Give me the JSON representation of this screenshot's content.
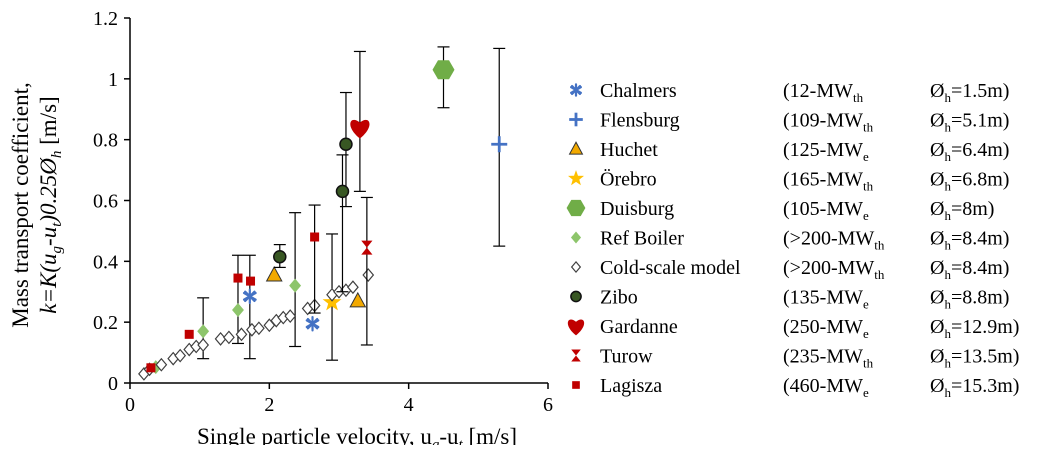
{
  "chart_data": {
    "type": "scatter",
    "xlabel": "Single particle velocity, u",
    "xlabel_sub": "g",
    "xlabel_mid": "-u",
    "xlabel_sub2": "t",
    "xlabel_unit": " [m/s]",
    "ylabel_line1": "Mass transport coefficient,",
    "ylabel_line2": "k=K(u",
    "ylabel_sub1": "g",
    "ylabel_mid": "-u",
    "ylabel_sub2": "t",
    "ylabel_rest": ")0.25Ø",
    "ylabel_sub3": "h",
    "ylabel_unit": " [m/s]",
    "xlim": [
      0,
      6
    ],
    "ylim": [
      0,
      1.2
    ],
    "x_ticks": [
      0,
      2,
      4,
      6
    ],
    "x_tick_labels": [
      "0",
      "2",
      "4",
      "6"
    ],
    "y_ticks": [
      0,
      0.2,
      0.4,
      0.6,
      0.8,
      1,
      1.2
    ],
    "y_tick_labels": [
      "0",
      "0.2",
      "0.4",
      "0.6",
      "0.8",
      "1",
      "1.2"
    ],
    "grid": false,
    "legend_placement": "right",
    "series": [
      {
        "name": "Chalmers",
        "detail": "(12-MW",
        "sub": "th",
        "diam": "Ø",
        "diam_sub": "h",
        "diam_val": "=1.5m)",
        "marker": "asterisk",
        "color": "#4472C4",
        "points": [
          {
            "x": 1.72,
            "y": 0.285,
            "lo": 0.08,
            "hi": 0.42
          },
          {
            "x": 2.62,
            "y": 0.195
          }
        ]
      },
      {
        "name": "Flensburg",
        "detail": "(109-MW",
        "sub": "th",
        "diam": "Ø",
        "diam_sub": "h",
        "diam_val": "=5.1m)",
        "marker": "plus",
        "color": "#4472C4",
        "points": [
          {
            "x": 5.3,
            "y": 0.785,
            "lo": 0.45,
            "hi": 1.1
          }
        ]
      },
      {
        "name": "Huchet",
        "detail": "(125-MW",
        "sub": "e",
        "diam": "Ø",
        "diam_sub": "h",
        "diam_val": "=6.4m)",
        "marker": "triangle",
        "color": "#F2A900",
        "points": [
          {
            "x": 2.07,
            "y": 0.355
          },
          {
            "x": 3.27,
            "y": 0.27
          }
        ]
      },
      {
        "name": "Örebro",
        "detail": "(165-MW",
        "sub": "th",
        "diam": "Ø",
        "diam_sub": "h",
        "diam_val": "=6.8m)",
        "marker": "star",
        "color": "#FFC000",
        "points": [
          {
            "x": 2.9,
            "y": 0.265,
            "lo": 0.075,
            "hi": 0.49
          }
        ]
      },
      {
        "name": "Duisburg",
        "detail": "(105-MW",
        "sub": "e",
        "diam": "Ø",
        "diam_sub": "h",
        "diam_val": "=8m)",
        "marker": "hexagon",
        "color": "#70AD47",
        "points": [
          {
            "x": 4.5,
            "y": 1.03,
            "lo": 0.905,
            "hi": 1.105
          }
        ]
      },
      {
        "name": "Ref Boiler",
        "detail": "(>200-MW",
        "sub": "th",
        "diam": "Ø",
        "diam_sub": "h",
        "diam_val": "=8.4m)",
        "marker": "diamond",
        "color": "#8DC56B",
        "points": [
          {
            "x": 0.37,
            "y": 0.052
          },
          {
            "x": 1.05,
            "y": 0.17,
            "lo": 0.08,
            "hi": 0.28
          },
          {
            "x": 1.55,
            "y": 0.24,
            "lo": 0.13,
            "hi": 0.42
          },
          {
            "x": 2.37,
            "y": 0.32,
            "lo": 0.12,
            "hi": 0.56
          }
        ]
      },
      {
        "name": "Cold-scale model",
        "detail": "(>200-MW",
        "sub": "th",
        "diam": "Ø",
        "diam_sub": "h",
        "diam_val": "=8.4m)",
        "marker": "open-diamond",
        "color": "#404040",
        "points": [
          {
            "x": 0.2,
            "y": 0.03
          },
          {
            "x": 0.28,
            "y": 0.045
          },
          {
            "x": 0.45,
            "y": 0.06
          },
          {
            "x": 0.62,
            "y": 0.08
          },
          {
            "x": 0.72,
            "y": 0.09
          },
          {
            "x": 0.85,
            "y": 0.11
          },
          {
            "x": 0.95,
            "y": 0.12
          },
          {
            "x": 1.05,
            "y": 0.125
          },
          {
            "x": 1.3,
            "y": 0.145
          },
          {
            "x": 1.42,
            "y": 0.15
          },
          {
            "x": 1.6,
            "y": 0.16
          },
          {
            "x": 1.75,
            "y": 0.175
          },
          {
            "x": 1.85,
            "y": 0.18
          },
          {
            "x": 2.0,
            "y": 0.19
          },
          {
            "x": 2.1,
            "y": 0.205
          },
          {
            "x": 2.2,
            "y": 0.215
          },
          {
            "x": 2.3,
            "y": 0.22
          },
          {
            "x": 2.55,
            "y": 0.245
          },
          {
            "x": 2.65,
            "y": 0.255
          },
          {
            "x": 2.9,
            "y": 0.29
          },
          {
            "x": 3.0,
            "y": 0.3
          },
          {
            "x": 3.1,
            "y": 0.305
          },
          {
            "x": 3.2,
            "y": 0.315
          },
          {
            "x": 3.42,
            "y": 0.355
          }
        ]
      },
      {
        "name": "Zibo",
        "detail": "(135-MW",
        "sub": "e",
        "diam": "Ø",
        "diam_sub": "h",
        "diam_val": "=8.8m)",
        "marker": "circle",
        "color": "#385723",
        "points": [
          {
            "x": 2.15,
            "y": 0.415,
            "lo": 0.38,
            "hi": 0.455
          },
          {
            "x": 3.05,
            "y": 0.63,
            "lo": 0.3,
            "hi": 0.75
          },
          {
            "x": 3.1,
            "y": 0.785,
            "lo": 0.58,
            "hi": 0.955
          }
        ]
      },
      {
        "name": "Gardanne",
        "detail": "(250-MW",
        "sub": "e",
        "diam": "Ø",
        "diam_sub": "h",
        "diam_val": "=12.9m)",
        "marker": "heart",
        "color": "#C00000",
        "points": [
          {
            "x": 3.3,
            "y": 0.84,
            "lo": 0.63,
            "hi": 1.09
          }
        ]
      },
      {
        "name": "Turow",
        "detail": "(235-MW",
        "sub": "th",
        "diam": "Ø",
        "diam_sub": "h",
        "diam_val": "=13.5m)",
        "marker": "hourglass",
        "color": "#C00000",
        "points": [
          {
            "x": 3.4,
            "y": 0.445,
            "lo": 0.125,
            "hi": 0.61
          }
        ]
      },
      {
        "name": "Lagisza",
        "detail": "(460-MW",
        "sub": "e",
        "diam": "Ø",
        "diam_sub": "h",
        "diam_val": "=15.3m)",
        "marker": "square",
        "color": "#C00000",
        "points": [
          {
            "x": 0.3,
            "y": 0.05
          },
          {
            "x": 0.85,
            "y": 0.16
          },
          {
            "x": 1.55,
            "y": 0.345
          },
          {
            "x": 1.73,
            "y": 0.335
          },
          {
            "x": 2.65,
            "y": 0.48,
            "lo": 0.23,
            "hi": 0.585
          }
        ]
      }
    ]
  }
}
